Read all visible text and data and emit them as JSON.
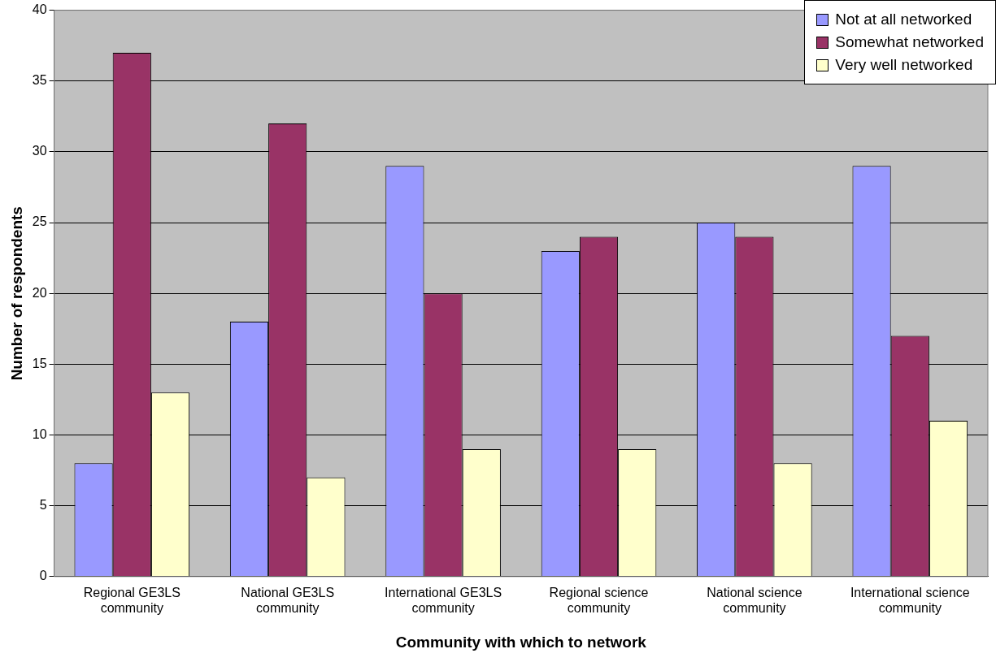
{
  "chart_data": {
    "type": "bar",
    "xlabel": "Community with which to network",
    "ylabel": "Number of respondents",
    "categories": [
      "Regional GE3LS community",
      "National GE3LS community",
      "International GE3LS community",
      "Regional science community",
      "National science community",
      "International science community"
    ],
    "series": [
      {
        "name": "Not at all networked",
        "color": "#9999ff",
        "values": [
          8,
          18,
          29,
          23,
          25,
          29
        ]
      },
      {
        "name": "Somewhat networked",
        "color": "#993366",
        "values": [
          37,
          32,
          20,
          24,
          24,
          17
        ]
      },
      {
        "name": "Very well networked",
        "color": "#ffffcc",
        "values": [
          13,
          7,
          9,
          9,
          8,
          11
        ]
      }
    ],
    "ylim": [
      0,
      40
    ],
    "yticks": [
      0,
      5,
      10,
      15,
      20,
      25,
      30,
      35,
      40
    ],
    "grid": "y",
    "legend": "top right"
  }
}
